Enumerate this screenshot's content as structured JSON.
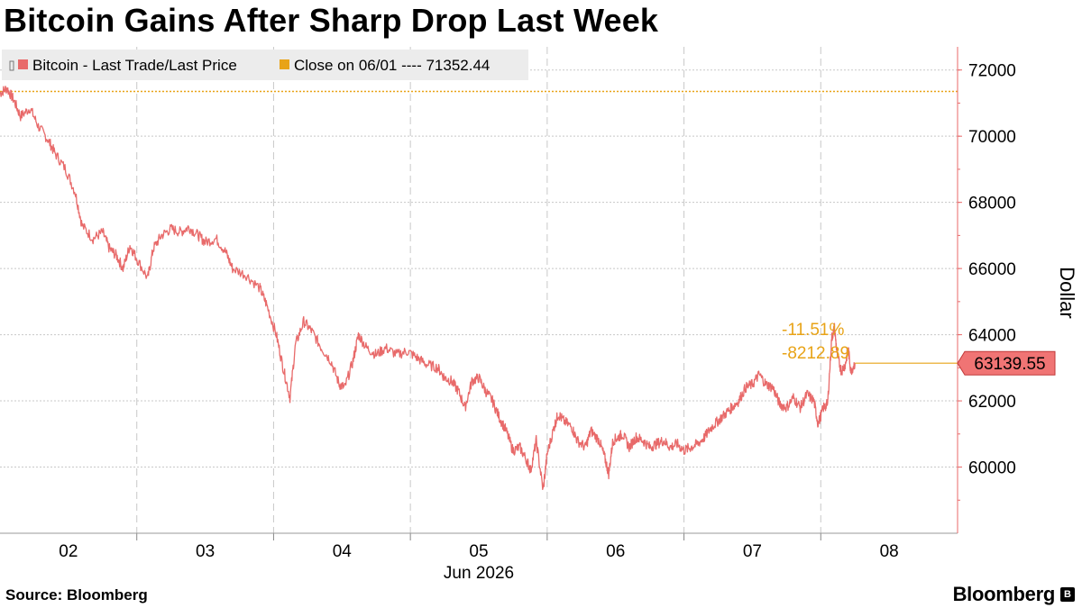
{
  "title": "Bitcoin Gains After Sharp Drop Last Week",
  "source": "Source: Bloomberg",
  "brand": "Bloomberg",
  "colors": {
    "series": "#e86a6a",
    "close": "#e8a317",
    "grid": "#c8c8c8",
    "axis": "#e86a6a",
    "tag_fill": "#f07474"
  },
  "chart_data": {
    "type": "line",
    "legend": [
      {
        "label": "Bitcoin - Last Trade/Last Price",
        "color": "#e86a6a"
      },
      {
        "label": "Close on 06/01 ---- 71352.44",
        "color": "#e8a317"
      }
    ],
    "x_ticks": [
      "02",
      "03",
      "04",
      "05",
      "06",
      "07",
      "08"
    ],
    "x_sublabel": "Jun 2026",
    "xlim": [
      1.5,
      8.5
    ],
    "y_ticks": [
      "60000",
      "62000",
      "64000",
      "66000",
      "68000",
      "70000",
      "72000"
    ],
    "ylim": [
      58000,
      72700
    ],
    "ylabel": "Dollar",
    "grid": true,
    "reference_line": {
      "label": "Close on 06/01",
      "value": 71352.44
    },
    "last_price": 63139.55,
    "annotations": {
      "pct_change": "-11.51%",
      "abs_change": "-8212.89"
    },
    "series": [
      {
        "name": "Bitcoin - Last Trade/Last Price",
        "points": [
          [
            1.5,
            71300
          ],
          [
            1.55,
            71450
          ],
          [
            1.6,
            71100
          ],
          [
            1.65,
            70600
          ],
          [
            1.72,
            70850
          ],
          [
            1.78,
            70300
          ],
          [
            1.85,
            69900
          ],
          [
            1.9,
            69500
          ],
          [
            1.98,
            69000
          ],
          [
            2.05,
            68300
          ],
          [
            2.1,
            67300
          ],
          [
            2.18,
            66900
          ],
          [
            2.25,
            67100
          ],
          [
            2.3,
            66600
          ],
          [
            2.35,
            66400
          ],
          [
            2.4,
            66000
          ],
          [
            2.45,
            66700
          ],
          [
            2.5,
            66300
          ],
          [
            2.58,
            65700
          ],
          [
            2.62,
            66600
          ],
          [
            2.68,
            67000
          ],
          [
            2.75,
            67200
          ],
          [
            2.82,
            67100
          ],
          [
            2.88,
            67250
          ],
          [
            2.95,
            67000
          ],
          [
            3.0,
            66800
          ],
          [
            3.08,
            66900
          ],
          [
            3.15,
            66500
          ],
          [
            3.2,
            66000
          ],
          [
            3.3,
            65800
          ],
          [
            3.4,
            65400
          ],
          [
            3.45,
            64900
          ],
          [
            3.52,
            64000
          ],
          [
            3.57,
            63000
          ],
          [
            3.62,
            62100
          ],
          [
            3.66,
            63700
          ],
          [
            3.72,
            64400
          ],
          [
            3.78,
            64100
          ],
          [
            3.85,
            63600
          ],
          [
            3.92,
            63200
          ],
          [
            3.98,
            62500
          ],
          [
            4.02,
            62400
          ],
          [
            4.08,
            63200
          ],
          [
            4.12,
            64000
          ],
          [
            4.18,
            63600
          ],
          [
            4.25,
            63400
          ],
          [
            4.32,
            63600
          ],
          [
            4.4,
            63400
          ],
          [
            4.48,
            63500
          ],
          [
            4.55,
            63300
          ],
          [
            4.62,
            63100
          ],
          [
            4.7,
            63000
          ],
          [
            4.75,
            62700
          ],
          [
            4.8,
            62600
          ],
          [
            4.85,
            62300
          ],
          [
            4.9,
            61800
          ],
          [
            4.95,
            62600
          ],
          [
            5.0,
            62700
          ],
          [
            5.05,
            62300
          ],
          [
            5.1,
            62000
          ],
          [
            5.15,
            61500
          ],
          [
            5.2,
            61100
          ],
          [
            5.25,
            60500
          ],
          [
            5.3,
            60600
          ],
          [
            5.35,
            60200
          ],
          [
            5.38,
            59900
          ],
          [
            5.42,
            60800
          ],
          [
            5.47,
            59300
          ],
          [
            5.5,
            60400
          ],
          [
            5.55,
            61200
          ],
          [
            5.58,
            61600
          ],
          [
            5.62,
            61400
          ],
          [
            5.68,
            61200
          ],
          [
            5.72,
            60800
          ],
          [
            5.78,
            60600
          ],
          [
            5.82,
            61100
          ],
          [
            5.88,
            60800
          ],
          [
            5.92,
            60300
          ],
          [
            5.95,
            59800
          ],
          [
            5.98,
            60800
          ],
          [
            6.02,
            60900
          ],
          [
            6.05,
            61000
          ],
          [
            6.1,
            60600
          ],
          [
            6.15,
            60900
          ],
          [
            6.2,
            60800
          ],
          [
            6.25,
            60600
          ],
          [
            6.3,
            60700
          ],
          [
            6.35,
            60800
          ],
          [
            6.4,
            60600
          ],
          [
            6.45,
            60700
          ],
          [
            6.5,
            60500
          ],
          [
            6.55,
            60600
          ],
          [
            6.6,
            60700
          ],
          [
            6.65,
            60900
          ],
          [
            6.7,
            61200
          ],
          [
            6.75,
            61400
          ],
          [
            6.8,
            61600
          ],
          [
            6.85,
            61800
          ],
          [
            6.9,
            62000
          ],
          [
            6.95,
            62400
          ],
          [
            7.0,
            62500
          ],
          [
            7.05,
            62800
          ],
          [
            7.1,
            62500
          ],
          [
            7.15,
            62400
          ],
          [
            7.2,
            61900
          ],
          [
            7.25,
            61800
          ],
          [
            7.3,
            62100
          ],
          [
            7.35,
            61800
          ],
          [
            7.4,
            62200
          ],
          [
            7.45,
            62000
          ],
          [
            7.48,
            61300
          ],
          [
            7.52,
            61800
          ],
          [
            7.55,
            61900
          ],
          [
            7.58,
            63900
          ],
          [
            7.6,
            64200
          ],
          [
            7.62,
            63400
          ],
          [
            7.65,
            62900
          ],
          [
            7.68,
            63100
          ],
          [
            7.7,
            63600
          ],
          [
            7.72,
            62900
          ],
          [
            7.75,
            63139.55
          ]
        ]
      }
    ]
  }
}
